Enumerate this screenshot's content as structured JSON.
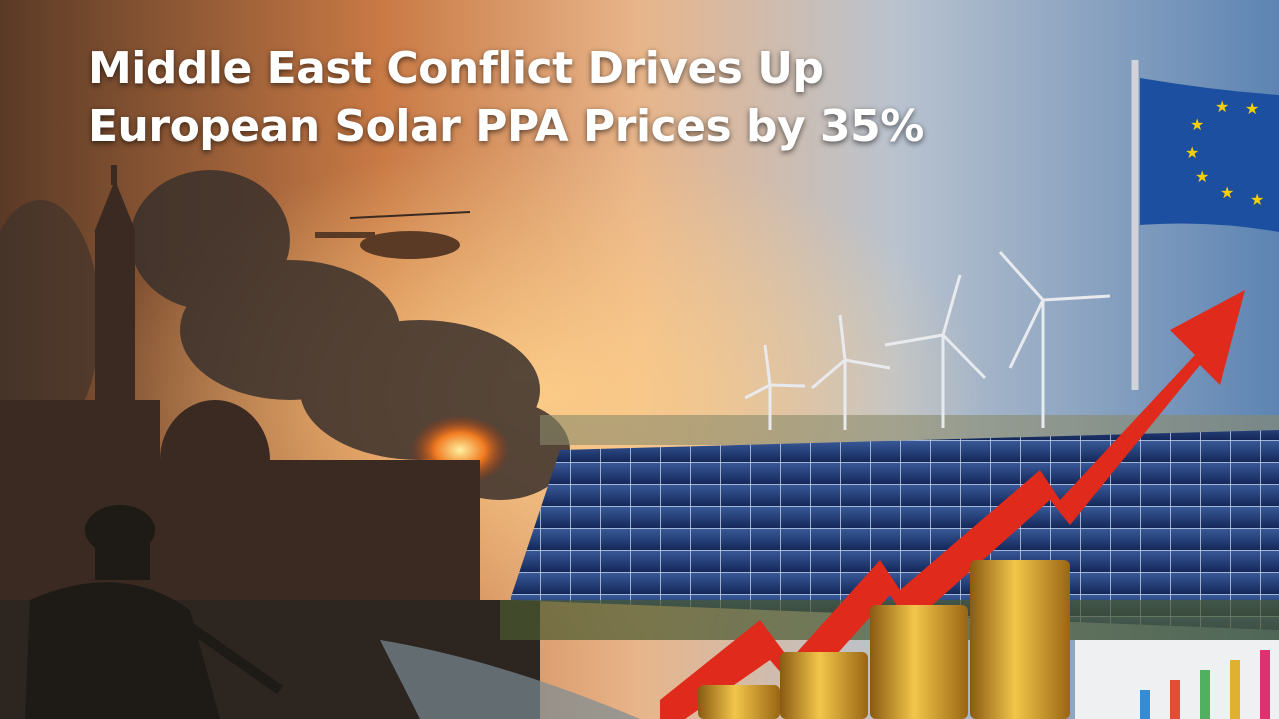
{
  "headline": {
    "title": "Middle East Conflict Drives Up European Solar PPA Prices by 35%"
  },
  "scene": {
    "left_theme": "war-scene",
    "right_theme": "solar-farm",
    "colors": {
      "fire_orange": "#e8742a",
      "smoke": "#3a302b",
      "sky_blue": "#6d8fb5",
      "panel_blue": "#1f3a78",
      "arrow_red": "#e02a1c",
      "coin_gold": "#d9a431",
      "eu_blue": "#1d4fa0",
      "eu_star": "#f5d000"
    }
  }
}
